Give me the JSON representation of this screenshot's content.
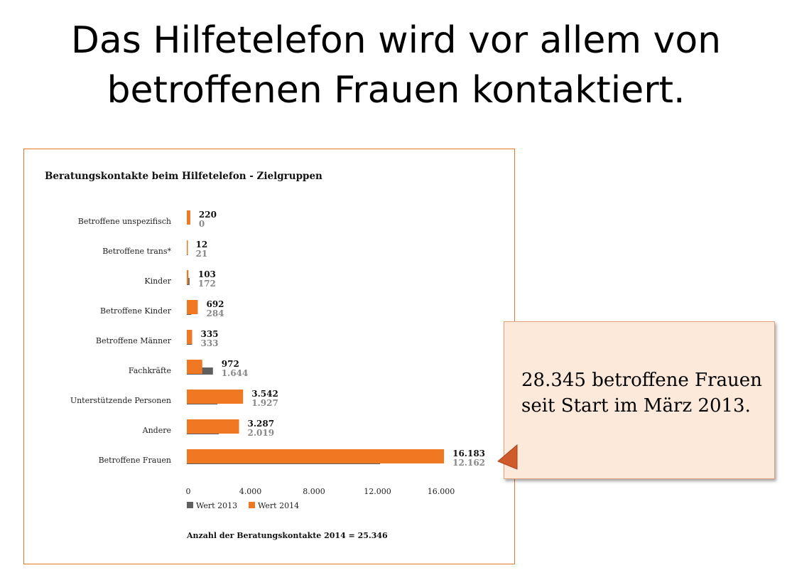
{
  "slide": {
    "title_line1": "Das Hilfetelefon wird vor allem von",
    "title_line2": "betroffenen Frauen kontaktiert."
  },
  "callout": {
    "text": "28.345 betroffene Frauen seit Start im März 2013."
  },
  "chart_data": {
    "type": "bar",
    "orientation": "horizontal",
    "title": "Beratungskontakte beim Hilfetelefon - Zielgruppen",
    "categories": [
      "Betroffene unspezifisch",
      "Betroffene trans*",
      "Kinder",
      "Betroffene Kinder",
      "Betroffene Männer",
      "Fachkräfte",
      "Unterstützende Personen",
      "Andere",
      "Betroffene Frauen"
    ],
    "series": [
      {
        "name": "Wert 2013",
        "color": "#5f5f5f",
        "values": [
          0,
          21,
          172,
          284,
          333,
          1644,
          1927,
          2019,
          12162
        ],
        "labels": [
          "0",
          "21",
          "172",
          "284",
          "333",
          "1.644",
          "1.927",
          "2.019",
          "12.162"
        ]
      },
      {
        "name": "Wert 2014",
        "color": "#f07823",
        "values": [
          220,
          12,
          103,
          692,
          335,
          972,
          3542,
          3287,
          16183
        ],
        "labels": [
          "220",
          "12",
          "103",
          "692",
          "335",
          "972",
          "3.542",
          "3.287",
          "16.183"
        ]
      }
    ],
    "xlim": [
      0,
      16000
    ],
    "xticks": [
      "0",
      "4.000",
      "8.000",
      "12.000",
      "16.000"
    ],
    "xtick_values": [
      0,
      4000,
      8000,
      12000,
      16000
    ],
    "legend_position": "bottom-left",
    "footnote": "Anzahl der Beratungskontakte 2014 = 25.346"
  }
}
